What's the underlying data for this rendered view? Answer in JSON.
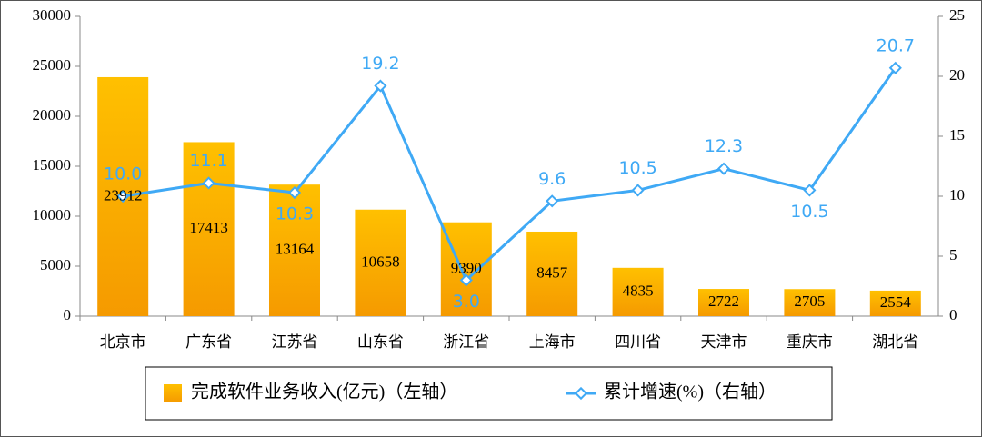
{
  "chart_data": {
    "type": "bar",
    "categories": [
      "北京市",
      "广东省",
      "江苏省",
      "山东省",
      "浙江省",
      "上海市",
      "四川省",
      "天津市",
      "重庆市",
      "湖北省"
    ],
    "series": [
      {
        "name": "完成软件业务收入(亿元)（左轴）",
        "type": "bar",
        "color": "#ffc000",
        "values": [
          23912,
          17413,
          13164,
          10658,
          9390,
          8457,
          4835,
          2722,
          2705,
          2554
        ]
      },
      {
        "name": "累计增速(%)（右轴）",
        "type": "line",
        "axis": "y2",
        "color": "#3fa9f5",
        "values": [
          10.0,
          11.1,
          10.3,
          19.2,
          3.0,
          9.6,
          10.5,
          12.3,
          10.5,
          20.7
        ],
        "value_labels": [
          "10.0",
          "11.1",
          "10.3",
          "19.2",
          "3.0",
          "9.6",
          "10.5",
          "12.3",
          "10.5",
          "20.7"
        ]
      }
    ],
    "ylim": [
      0,
      30000
    ],
    "yticks": [
      0,
      5000,
      10000,
      15000,
      20000,
      25000,
      30000
    ],
    "y2lim": [
      0,
      25
    ],
    "y2ticks": [
      0,
      5,
      10,
      15,
      20,
      25
    ],
    "legend": "bottom"
  }
}
